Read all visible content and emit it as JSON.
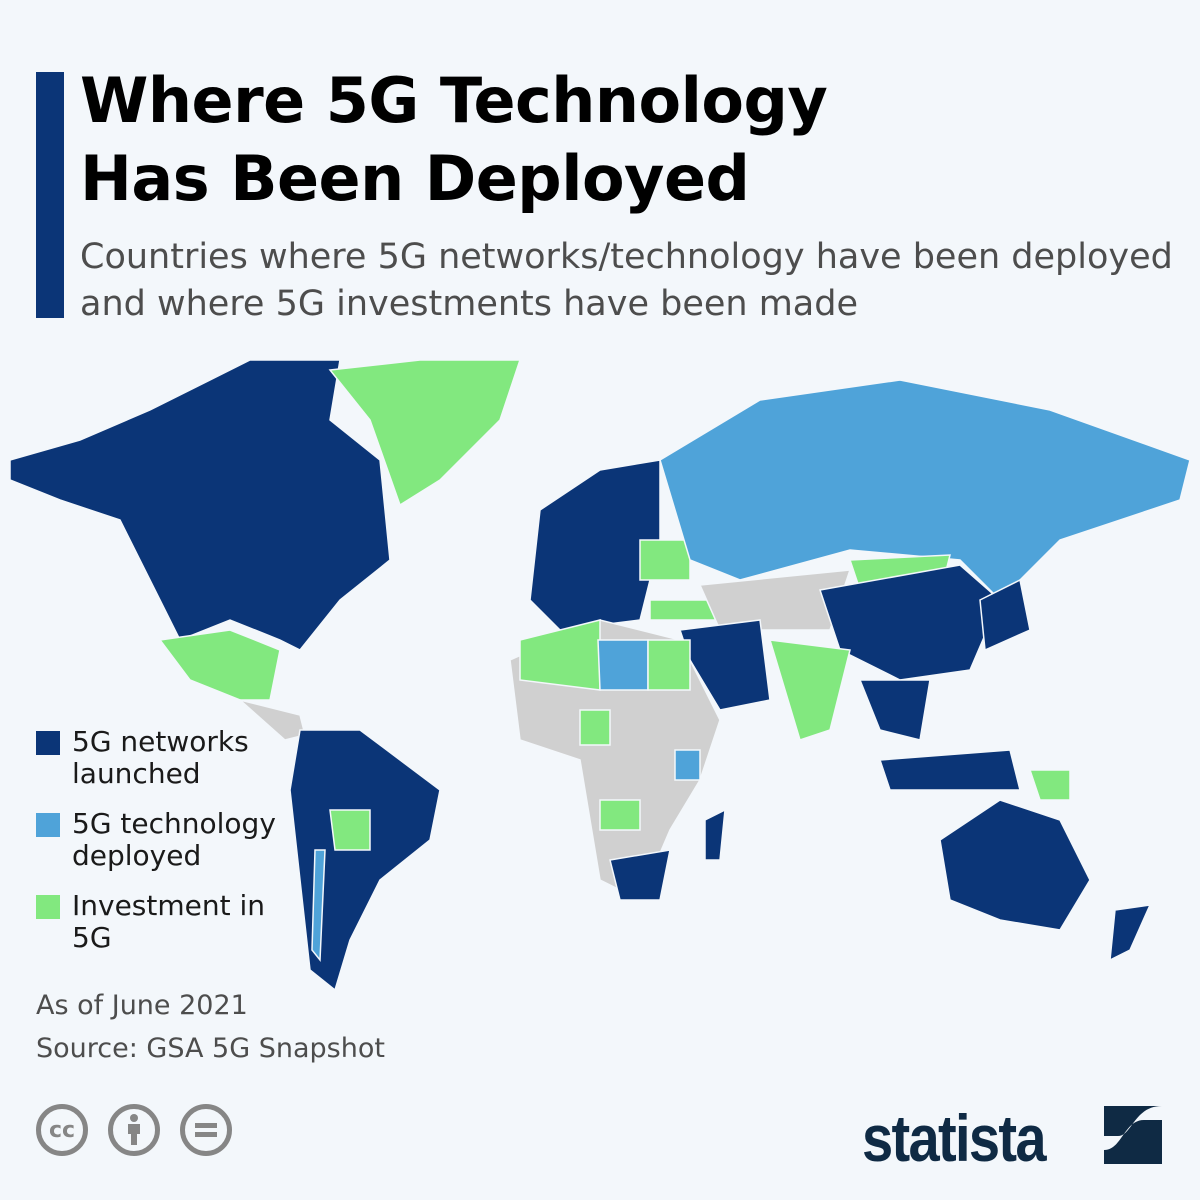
{
  "header": {
    "title_lines": [
      "Where 5G Technology",
      "Has Been Deployed"
    ],
    "subtitle": "Countries where 5G networks/technology have been deployed and where 5G investments have been made"
  },
  "colors": {
    "launched": "#0b3577",
    "deployed": "#4fa3d9",
    "investment": "#82e87f",
    "none": "#d0d0d0",
    "background": "#f3f7fb"
  },
  "legend": [
    {
      "label": "5G networks launched",
      "status": "launched"
    },
    {
      "label": "5G technology deployed",
      "status": "deployed"
    },
    {
      "label": "Investment in 5G",
      "status": "investment"
    }
  ],
  "footer": {
    "as_of": "As of June 2021",
    "source": "Source: GSA 5G Snapshot",
    "brand": "statista",
    "license_icons": [
      "cc-icon",
      "attribution-icon",
      "no-derivatives-icon"
    ]
  }
}
